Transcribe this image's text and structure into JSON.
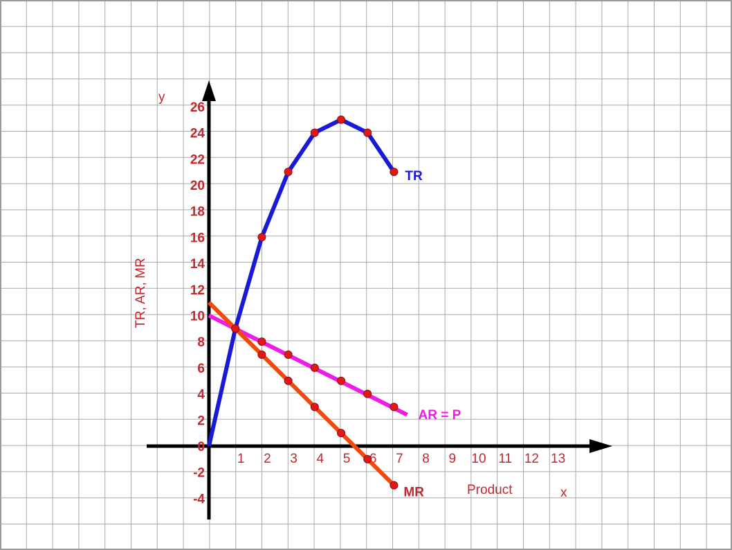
{
  "chart_data": {
    "type": "line",
    "ylabel": "TR, AR, MR",
    "y_axis_letter": "y",
    "xlabel": "Product",
    "x_axis_letter": "x",
    "ylim": [
      -4,
      26
    ],
    "xlim": [
      0,
      13
    ],
    "y_ticks": [
      "26",
      "24",
      "22",
      "20",
      "18",
      "16",
      "14",
      "12",
      "10",
      "8",
      "6",
      "4",
      "2",
      "0",
      "-2",
      "-4"
    ],
    "x_ticks": [
      "1",
      "2",
      "3",
      "4",
      "5",
      "6",
      "7",
      "8",
      "9",
      "10",
      "11",
      "12",
      "13"
    ],
    "grid": true,
    "series": [
      {
        "name": "TR",
        "color": "#1a1ad6",
        "points": [
          [
            0,
            0
          ],
          [
            1,
            9
          ],
          [
            2,
            16
          ],
          [
            3,
            21
          ],
          [
            4,
            24
          ],
          [
            5,
            25
          ],
          [
            6,
            24
          ],
          [
            7,
            21
          ]
        ],
        "markers": [
          [
            2,
            16
          ],
          [
            3,
            21
          ],
          [
            4,
            24
          ],
          [
            5,
            25
          ],
          [
            6,
            24
          ],
          [
            7,
            21
          ]
        ]
      },
      {
        "name": "AR = P",
        "color": "#ee1de6",
        "points": [
          [
            0,
            10
          ],
          [
            7.5,
            2.4
          ]
        ],
        "markers": [
          [
            1,
            9
          ],
          [
            2,
            8
          ],
          [
            3,
            7
          ],
          [
            4,
            6
          ],
          [
            5,
            5
          ],
          [
            6,
            4
          ],
          [
            7,
            3
          ]
        ]
      },
      {
        "name": "MR",
        "color": "#f24a0c",
        "points": [
          [
            0,
            11
          ],
          [
            7,
            -3
          ]
        ],
        "markers": [
          [
            1,
            9
          ],
          [
            2,
            7
          ],
          [
            3,
            5
          ],
          [
            4,
            3
          ],
          [
            5,
            1
          ],
          [
            6,
            -1
          ],
          [
            7,
            -3
          ]
        ]
      }
    ],
    "marker_color": "#e01818"
  }
}
